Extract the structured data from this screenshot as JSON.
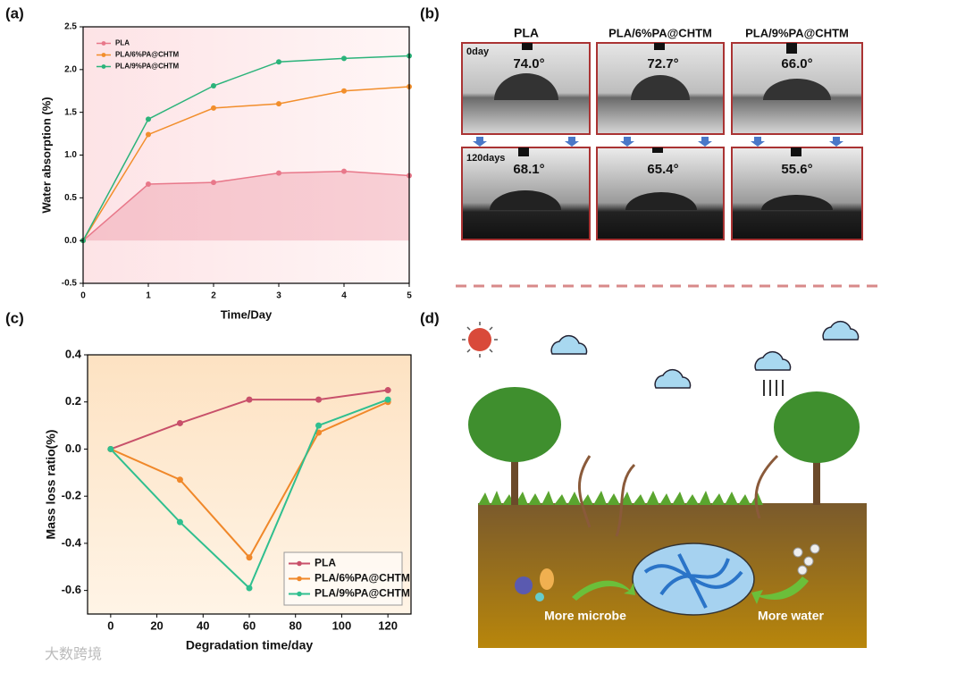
{
  "chart_data": [
    {
      "type": "line",
      "label": "(a)",
      "xlabel": "Time/Day",
      "ylabel": "Water absorption (%)",
      "x": [
        0,
        1,
        2,
        3,
        4,
        5
      ],
      "xlim": [
        0,
        5
      ],
      "xticks": [
        0,
        1,
        2,
        3,
        4,
        5
      ],
      "ylim": [
        -0.5,
        2.5
      ],
      "yticks": [
        -0.5,
        {
          "value": 0,
          "label": "0.0"
        },
        0.5,
        {
          "value": 1,
          "label": "1.0"
        },
        1.5,
        {
          "value": 2,
          "label": "2.0"
        },
        2.5
      ],
      "legend": "upper left",
      "series": [
        {
          "name": "PLA",
          "color": "#e8788a",
          "fill": true,
          "values": [
            0,
            0.66,
            0.68,
            0.79,
            0.81,
            0.76
          ]
        },
        {
          "name": "PLA/6%PA@CHTM",
          "color": "#f28e2b",
          "values": [
            0,
            1.24,
            1.55,
            1.6,
            1.75,
            1.8
          ]
        },
        {
          "name": "PLA/9%PA@CHTM",
          "color": "#2bb37a",
          "values": [
            0,
            1.42,
            1.81,
            2.09,
            2.13,
            2.16
          ]
        }
      ]
    },
    {
      "type": "line",
      "label": "(c)",
      "xlabel": "Degradation time/day",
      "ylabel": "Mass loss ratio(%)",
      "x": [
        0,
        30,
        60,
        90,
        120
      ],
      "xlim": [
        -10,
        130
      ],
      "xticks": [
        0,
        20,
        40,
        60,
        80,
        100,
        120
      ],
      "ylim": [
        -0.7,
        0.4
      ],
      "yticks": [
        -0.6,
        -0.4,
        -0.2,
        {
          "value": 0,
          "label": "0.0"
        },
        0.2,
        0.4
      ],
      "legend": "lower right",
      "series": [
        {
          "name": "PLA",
          "color": "#c8506a",
          "values": [
            0,
            0.11,
            0.21,
            0.21,
            0.25
          ]
        },
        {
          "name": "PLA/6%PA@CHTM",
          "color": "#f0882a",
          "values": [
            0,
            -0.13,
            -0.46,
            0.07,
            0.2
          ]
        },
        {
          "name": "PLA/9%PA@CHTM",
          "color": "#2fbf8f",
          "values": [
            0,
            -0.31,
            -0.59,
            0.1,
            0.21
          ]
        }
      ]
    }
  ],
  "panel_b": {
    "label": "(b)",
    "columns": [
      "PLA",
      "PLA/6%PA@CHTM",
      "PLA/9%PA@CHTM"
    ],
    "rows": [
      "0day",
      "120days"
    ],
    "angles": [
      [
        "74.0°",
        "72.7°",
        "66.0°"
      ],
      [
        "68.1°",
        "65.4°",
        "55.6°"
      ]
    ]
  },
  "panel_d": {
    "label": "(d)",
    "left_caption": "More microbe",
    "right_caption": "More water"
  },
  "watermark": "大数跨境"
}
